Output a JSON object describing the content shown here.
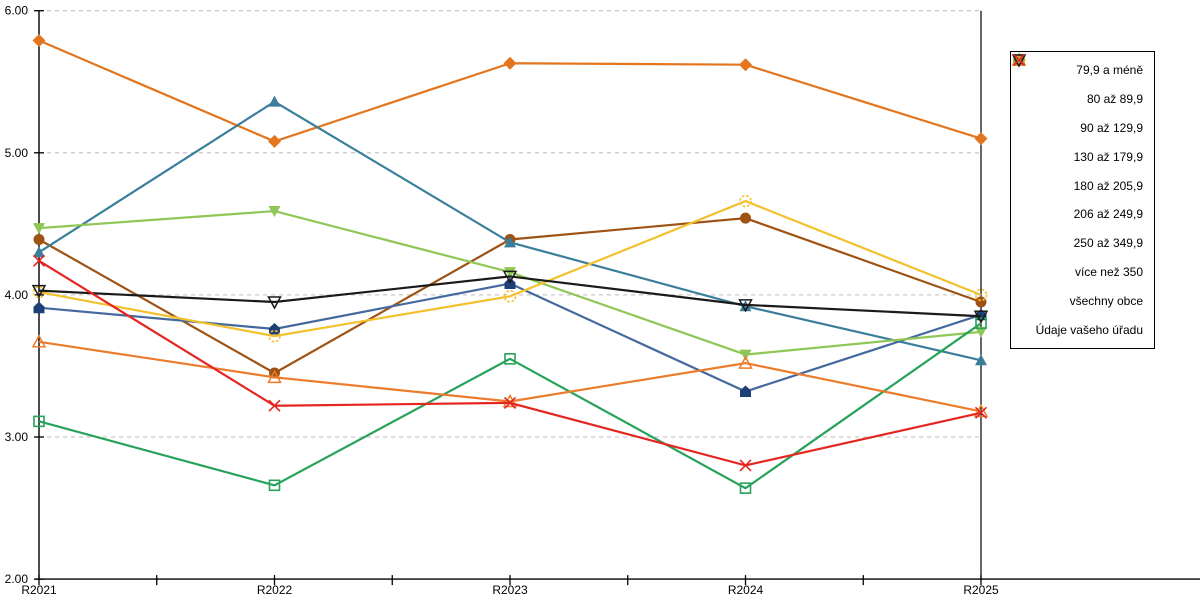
{
  "chart_data": {
    "type": "line",
    "title": "",
    "xlabel": "",
    "ylabel": "",
    "categories": [
      "R2021",
      "R2022",
      "R2023",
      "R2024",
      "R2025"
    ],
    "ylim": [
      2,
      6
    ],
    "ytick_step": 1,
    "ytick_format": "0.00",
    "grid": "horizontal-dashed",
    "grid_color": "#C9C9C9",
    "axis_color": "#000000",
    "legend_position": "right",
    "series": [
      {
        "name": "79,9 a méně",
        "marker": "diamond-filled",
        "color": "#E2751D",
        "values": [
          5.79,
          5.08,
          5.63,
          5.62,
          5.1
        ]
      },
      {
        "name": "80 až 89,9",
        "marker": "circle-filled",
        "color": "#9E5213",
        "values": [
          4.39,
          3.45,
          4.39,
          4.54,
          3.95
        ]
      },
      {
        "name": "90 až 129,9",
        "marker": "triangle-up-filled",
        "color": "#3A7E9B",
        "values": [
          4.3,
          5.36,
          4.37,
          3.92,
          3.54
        ]
      },
      {
        "name": "130 až 179,9",
        "marker": "pentagon-filled",
        "color": "#44699D",
        "marker_color": "#1F3F77",
        "values": [
          3.91,
          3.76,
          4.08,
          3.32,
          3.86
        ]
      },
      {
        "name": "180 až 205,9",
        "marker": "triangle-down-filled",
        "color": "#8FC655",
        "values": [
          4.47,
          4.59,
          4.16,
          3.58,
          3.74
        ]
      },
      {
        "name": "206 až 249,9",
        "marker": "square-open",
        "color": "#27A25B",
        "values": [
          3.11,
          2.66,
          3.55,
          2.64,
          3.8
        ]
      },
      {
        "name": "250 až 349,9",
        "marker": "circle-open-dashed",
        "color": "#F2C12E",
        "values": [
          4.02,
          3.71,
          3.99,
          4.66,
          4.0
        ]
      },
      {
        "name": "více než 350",
        "marker": "triangle-up-open",
        "color": "#EC7C2C",
        "values": [
          3.67,
          3.42,
          3.25,
          3.52,
          3.18
        ]
      },
      {
        "name": "všechny obce",
        "marker": "triangle-down-open",
        "color": "#1A1A1A",
        "values": [
          4.03,
          3.95,
          4.13,
          3.93,
          3.85
        ]
      },
      {
        "name": "Údaje vašeho úřadu",
        "marker": "x-cross",
        "color": "#E52520",
        "values": [
          4.24,
          3.22,
          3.24,
          2.8,
          3.17
        ]
      }
    ]
  }
}
